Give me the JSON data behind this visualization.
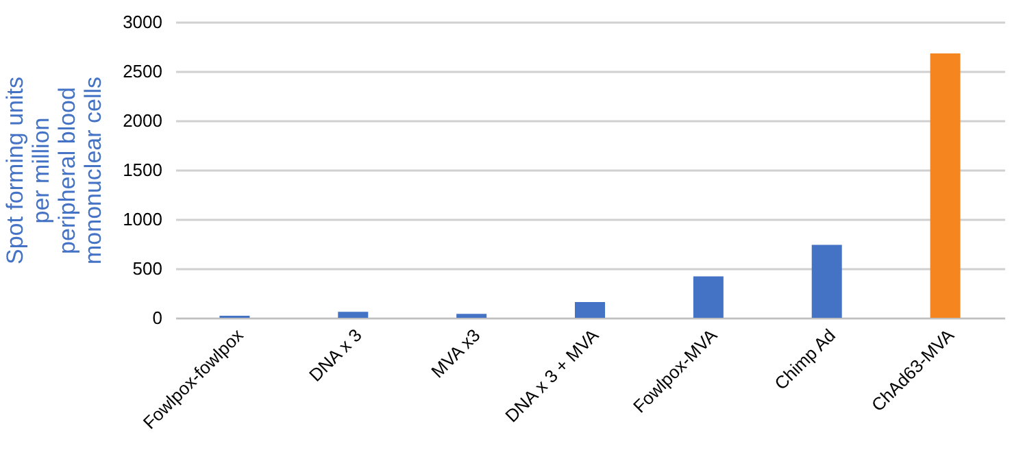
{
  "chart_data": {
    "type": "bar",
    "ylabel": "Spot forming units per million peripheral blood mononuclear cells",
    "categories": [
      "Fowlpox-fowlpox",
      "DNA x 3",
      "MVA x3",
      "DNA x 3 + MVA",
      "Fowlpox-MVA",
      "Chimp Ad",
      "ChAd63-MVA"
    ],
    "values": [
      20,
      60,
      40,
      160,
      420,
      740,
      2680
    ],
    "colors": [
      "#4472c4",
      "#4472c4",
      "#4472c4",
      "#4472c4",
      "#4472c4",
      "#4472c4",
      "#f5861f"
    ],
    "ylim": [
      0,
      3000
    ],
    "yticks": [
      0,
      500,
      1000,
      1500,
      2000,
      2500,
      3000
    ],
    "grid": "y"
  }
}
